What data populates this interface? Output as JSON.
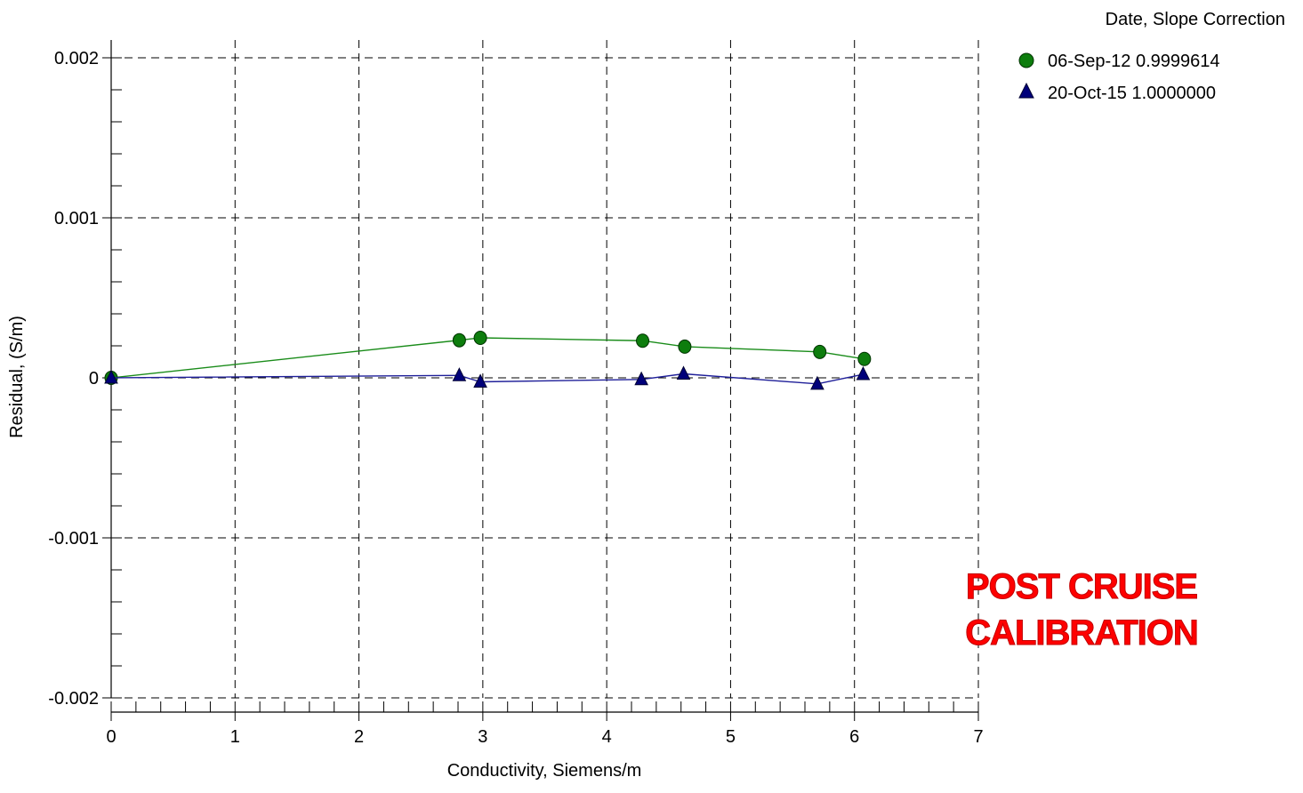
{
  "chart_data": {
    "type": "line",
    "title": "",
    "xlabel": "Conductivity, Siemens/m",
    "ylabel": "Residual, (S/m)",
    "xlim": [
      0,
      7
    ],
    "ylim": [
      -0.002,
      0.002
    ],
    "x_ticks": [
      0,
      1,
      2,
      3,
      4,
      5,
      6,
      7
    ],
    "x_tick_labels": [
      "0",
      "1",
      "2",
      "3",
      "4",
      "5",
      "6",
      "7"
    ],
    "y_ticks": [
      0.002,
      0.001,
      0,
      -0.001,
      -0.002
    ],
    "y_tick_labels": [
      "0.002",
      "0.001",
      "0",
      "-0.001",
      "-0.002"
    ],
    "grid": true,
    "legend_title": "Date, Slope Correction",
    "legend_position": "top-right",
    "series": [
      {
        "name": "06-Sep-12 0.9999614",
        "marker": "circle",
        "color": "#0d7d0d",
        "line_color": "#1a8c1a",
        "x": [
          0.0,
          2.81,
          2.98,
          4.29,
          4.63,
          5.72,
          6.08
        ],
        "y": [
          0.0,
          0.000235,
          0.00025,
          0.000232,
          0.000195,
          0.000162,
          0.000118
        ]
      },
      {
        "name": "20-Oct-15 1.0000000",
        "marker": "triangle",
        "color": "#00007a",
        "line_color": "#1f1f99",
        "x": [
          0.0,
          2.81,
          2.98,
          4.28,
          4.62,
          5.7,
          6.07
        ],
        "y": [
          0.0,
          1.5e-05,
          -2.5e-05,
          -1e-05,
          2.5e-05,
          -3.8e-05,
          2.2e-05
        ]
      }
    ],
    "annotation": {
      "lines": [
        "POST CRUISE",
        "CALIBRATION"
      ],
      "color": "#ff0000"
    }
  }
}
